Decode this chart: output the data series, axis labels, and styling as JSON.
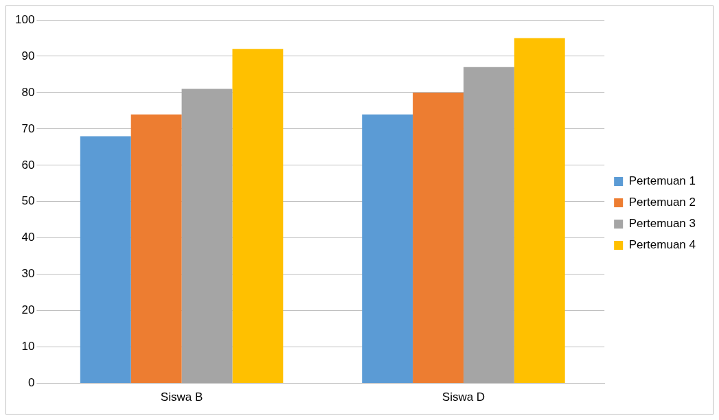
{
  "chart_data": {
    "type": "bar",
    "categories": [
      "Siswa B",
      "Siswa D"
    ],
    "series": [
      {
        "name": "Pertemuan 1",
        "color": "#5b9bd5",
        "values": [
          68,
          74
        ]
      },
      {
        "name": "Pertemuan 2",
        "color": "#ed7d31",
        "values": [
          74,
          80
        ]
      },
      {
        "name": "Pertemuan 3",
        "color": "#a5a5a5",
        "values": [
          81,
          87
        ]
      },
      {
        "name": "Pertemuan 4",
        "color": "#ffc000",
        "values": [
          92,
          95
        ]
      }
    ],
    "ylim": [
      0,
      100
    ],
    "yticks": [
      0,
      10,
      20,
      30,
      40,
      50,
      60,
      70,
      80,
      90,
      100
    ],
    "grid": "y",
    "legend": "right"
  }
}
